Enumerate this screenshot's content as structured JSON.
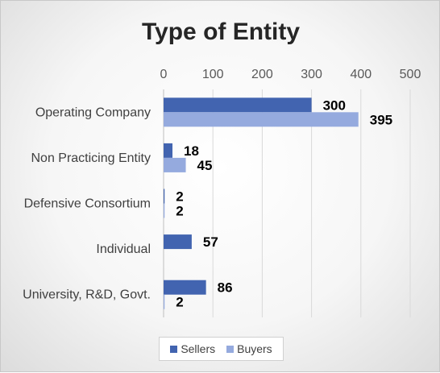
{
  "chart_data": {
    "type": "bar",
    "orientation": "horizontal",
    "title": "Type of Entity",
    "categories": [
      "Operating Company",
      "Non Practicing Entity",
      "Defensive Consortium",
      "Individual",
      "University, R&D, Govt."
    ],
    "series": [
      {
        "name": "Sellers",
        "values": [
          300,
          18,
          2,
          57,
          86
        ],
        "color": "#4264b0",
        "labels": [
          "300",
          "18",
          "2",
          "57",
          "86"
        ]
      },
      {
        "name": "Buyers",
        "values": [
          395,
          45,
          2,
          0,
          2
        ],
        "color": "#95aade",
        "labels": [
          "395",
          "45",
          "2",
          "",
          "2"
        ]
      }
    ],
    "x_ticks": [
      "0",
      "100",
      "200",
      "300",
      "400",
      "500"
    ],
    "xlim": [
      0,
      500
    ],
    "x_axis_position": "top",
    "grid": true,
    "legend_position": "bottom"
  }
}
